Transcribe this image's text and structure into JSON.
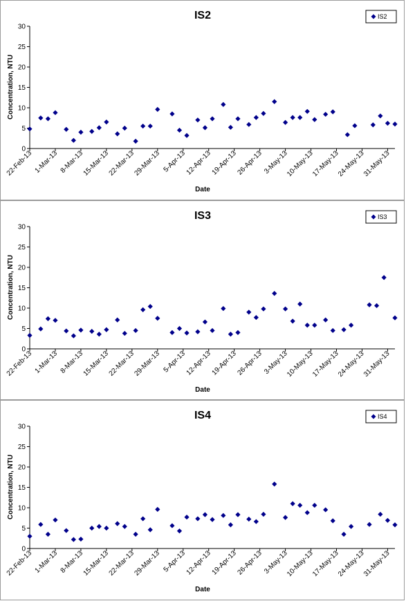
{
  "chart_data": [
    {
      "type": "scatter",
      "title": "IS2",
      "xlabel": "Date",
      "ylabel": "Concentration, NTU",
      "ylim": [
        0,
        30
      ],
      "yticks": [
        "0",
        "5",
        "10",
        "15",
        "20",
        "25",
        "30"
      ],
      "xticks": [
        "22-Feb-13",
        "1-Mar-13",
        "8-Mar-13",
        "15-Mar-13",
        "22-Mar-13",
        "29-Mar-13",
        "5-Apr-13",
        "12-Apr-13",
        "19-Apr-13",
        "26-Apr-13",
        "3-May-13",
        "10-May-13",
        "17-May-13",
        "24-May-13",
        "31-May-13"
      ],
      "xlim": [
        "2013-02-22",
        "2013-06-02"
      ],
      "legend": "top-right",
      "marker_color": "#00008b",
      "series": [
        {
          "name": "IS2",
          "points": [
            {
              "x": "2013-02-22",
              "y": 4.8
            },
            {
              "x": "2013-02-25",
              "y": 7.5
            },
            {
              "x": "2013-02-27",
              "y": 7.3
            },
            {
              "x": "2013-03-01",
              "y": 8.8
            },
            {
              "x": "2013-03-04",
              "y": 4.7
            },
            {
              "x": "2013-03-06",
              "y": 2.0
            },
            {
              "x": "2013-03-08",
              "y": 4.0
            },
            {
              "x": "2013-03-11",
              "y": 4.2
            },
            {
              "x": "2013-03-13",
              "y": 5.1
            },
            {
              "x": "2013-03-15",
              "y": 6.5
            },
            {
              "x": "2013-03-18",
              "y": 3.6
            },
            {
              "x": "2013-03-20",
              "y": 5.0
            },
            {
              "x": "2013-03-23",
              "y": 1.8
            },
            {
              "x": "2013-03-25",
              "y": 5.5
            },
            {
              "x": "2013-03-27",
              "y": 5.5
            },
            {
              "x": "2013-03-29",
              "y": 9.6
            },
            {
              "x": "2013-04-02",
              "y": 8.5
            },
            {
              "x": "2013-04-04",
              "y": 4.5
            },
            {
              "x": "2013-04-06",
              "y": 3.2
            },
            {
              "x": "2013-04-09",
              "y": 7.0
            },
            {
              "x": "2013-04-11",
              "y": 5.1
            },
            {
              "x": "2013-04-13",
              "y": 7.3
            },
            {
              "x": "2013-04-16",
              "y": 10.8
            },
            {
              "x": "2013-04-18",
              "y": 5.2
            },
            {
              "x": "2013-04-20",
              "y": 7.3
            },
            {
              "x": "2013-04-23",
              "y": 5.9
            },
            {
              "x": "2013-04-25",
              "y": 7.6
            },
            {
              "x": "2013-04-27",
              "y": 8.6
            },
            {
              "x": "2013-04-30",
              "y": 11.5
            },
            {
              "x": "2013-05-03",
              "y": 6.4
            },
            {
              "x": "2013-05-05",
              "y": 7.6
            },
            {
              "x": "2013-05-07",
              "y": 7.6
            },
            {
              "x": "2013-05-09",
              "y": 9.1
            },
            {
              "x": "2013-05-11",
              "y": 7.1
            },
            {
              "x": "2013-05-14",
              "y": 8.4
            },
            {
              "x": "2013-05-16",
              "y": 9.0
            },
            {
              "x": "2013-05-20",
              "y": 3.4
            },
            {
              "x": "2013-05-22",
              "y": 5.6
            },
            {
              "x": "2013-05-27",
              "y": 5.8
            },
            {
              "x": "2013-05-29",
              "y": 8.0
            },
            {
              "x": "2013-05-31",
              "y": 6.2
            },
            {
              "x": "2013-06-02",
              "y": 6.0
            }
          ]
        }
      ]
    },
    {
      "type": "scatter",
      "title": "IS3",
      "xlabel": "Date",
      "ylabel": "Concentration, NTU",
      "ylim": [
        0,
        30
      ],
      "yticks": [
        "0",
        "5",
        "10",
        "15",
        "20",
        "25",
        "30"
      ],
      "xticks": [
        "22-Feb-13",
        "1-Mar-13",
        "8-Mar-13",
        "15-Mar-13",
        "22-Mar-13",
        "29-Mar-13",
        "5-Apr-13",
        "12-Apr-13",
        "19-Apr-13",
        "26-Apr-13",
        "3-May-13",
        "10-May-13",
        "17-May-13",
        "24-May-13",
        "31-May-13"
      ],
      "xlim": [
        "2013-02-22",
        "2013-06-02"
      ],
      "legend": "top-right",
      "marker_color": "#00008b",
      "series": [
        {
          "name": "IS3",
          "points": [
            {
              "x": "2013-02-22",
              "y": 3.3
            },
            {
              "x": "2013-02-25",
              "y": 4.9
            },
            {
              "x": "2013-02-27",
              "y": 7.4
            },
            {
              "x": "2013-03-01",
              "y": 7.0
            },
            {
              "x": "2013-03-04",
              "y": 4.4
            },
            {
              "x": "2013-03-06",
              "y": 3.2
            },
            {
              "x": "2013-03-08",
              "y": 4.6
            },
            {
              "x": "2013-03-11",
              "y": 4.3
            },
            {
              "x": "2013-03-13",
              "y": 3.6
            },
            {
              "x": "2013-03-15",
              "y": 4.7
            },
            {
              "x": "2013-03-18",
              "y": 7.1
            },
            {
              "x": "2013-03-20",
              "y": 3.8
            },
            {
              "x": "2013-03-23",
              "y": 4.5
            },
            {
              "x": "2013-03-25",
              "y": 9.6
            },
            {
              "x": "2013-03-27",
              "y": 10.4
            },
            {
              "x": "2013-03-29",
              "y": 7.5
            },
            {
              "x": "2013-04-02",
              "y": 4.0
            },
            {
              "x": "2013-04-04",
              "y": 5.0
            },
            {
              "x": "2013-04-06",
              "y": 3.9
            },
            {
              "x": "2013-04-09",
              "y": 4.2
            },
            {
              "x": "2013-04-11",
              "y": 6.6
            },
            {
              "x": "2013-04-13",
              "y": 4.5
            },
            {
              "x": "2013-04-16",
              "y": 9.9
            },
            {
              "x": "2013-04-18",
              "y": 3.6
            },
            {
              "x": "2013-04-20",
              "y": 4.0
            },
            {
              "x": "2013-04-23",
              "y": 9.0
            },
            {
              "x": "2013-04-25",
              "y": 7.7
            },
            {
              "x": "2013-04-27",
              "y": 9.8
            },
            {
              "x": "2013-04-30",
              "y": 13.6
            },
            {
              "x": "2013-05-03",
              "y": 9.8
            },
            {
              "x": "2013-05-05",
              "y": 6.8
            },
            {
              "x": "2013-05-07",
              "y": 11.0
            },
            {
              "x": "2013-05-09",
              "y": 5.8
            },
            {
              "x": "2013-05-11",
              "y": 5.8
            },
            {
              "x": "2013-05-14",
              "y": 7.1
            },
            {
              "x": "2013-05-16",
              "y": 4.5
            },
            {
              "x": "2013-05-19",
              "y": 4.7
            },
            {
              "x": "2013-05-21",
              "y": 5.8
            },
            {
              "x": "2013-05-26",
              "y": 10.8
            },
            {
              "x": "2013-05-28",
              "y": 10.6
            },
            {
              "x": "2013-05-30",
              "y": 17.5
            },
            {
              "x": "2013-06-02",
              "y": 7.6
            }
          ]
        }
      ]
    },
    {
      "type": "scatter",
      "title": "IS4",
      "xlabel": "Date",
      "ylabel": "Concentration, NTU",
      "ylim": [
        0,
        30
      ],
      "yticks": [
        "0",
        "5",
        "10",
        "15",
        "20",
        "25",
        "30"
      ],
      "xticks": [
        "22-Feb-13",
        "1-Mar-13",
        "8-Mar-13",
        "15-Mar-13",
        "22-Mar-13",
        "29-Mar-13",
        "5-Apr-13",
        "12-Apr-13",
        "19-Apr-13",
        "26-Apr-13",
        "3-May-13",
        "10-May-13",
        "17-May-13",
        "24-May-13",
        "31-May-13"
      ],
      "xlim": [
        "2013-02-22",
        "2013-06-02"
      ],
      "legend": "top-right",
      "marker_color": "#00008b",
      "series": [
        {
          "name": "IS4",
          "points": [
            {
              "x": "2013-02-22",
              "y": 3.0
            },
            {
              "x": "2013-02-25",
              "y": 5.9
            },
            {
              "x": "2013-02-27",
              "y": 3.5
            },
            {
              "x": "2013-03-01",
              "y": 7.0
            },
            {
              "x": "2013-03-04",
              "y": 4.4
            },
            {
              "x": "2013-03-06",
              "y": 2.2
            },
            {
              "x": "2013-03-08",
              "y": 2.3
            },
            {
              "x": "2013-03-11",
              "y": 5.0
            },
            {
              "x": "2013-03-13",
              "y": 5.4
            },
            {
              "x": "2013-03-15",
              "y": 5.0
            },
            {
              "x": "2013-03-18",
              "y": 6.1
            },
            {
              "x": "2013-03-20",
              "y": 5.4
            },
            {
              "x": "2013-03-23",
              "y": 3.5
            },
            {
              "x": "2013-03-25",
              "y": 7.3
            },
            {
              "x": "2013-03-27",
              "y": 4.6
            },
            {
              "x": "2013-03-29",
              "y": 9.6
            },
            {
              "x": "2013-04-02",
              "y": 5.6
            },
            {
              "x": "2013-04-04",
              "y": 4.3
            },
            {
              "x": "2013-04-06",
              "y": 7.7
            },
            {
              "x": "2013-04-09",
              "y": 7.3
            },
            {
              "x": "2013-04-11",
              "y": 8.3
            },
            {
              "x": "2013-04-13",
              "y": 7.1
            },
            {
              "x": "2013-04-16",
              "y": 8.1
            },
            {
              "x": "2013-04-18",
              "y": 5.8
            },
            {
              "x": "2013-04-20",
              "y": 8.3
            },
            {
              "x": "2013-04-23",
              "y": 7.2
            },
            {
              "x": "2013-04-25",
              "y": 6.6
            },
            {
              "x": "2013-04-27",
              "y": 8.4
            },
            {
              "x": "2013-04-30",
              "y": 15.8
            },
            {
              "x": "2013-05-03",
              "y": 7.6
            },
            {
              "x": "2013-05-05",
              "y": 11.0
            },
            {
              "x": "2013-05-07",
              "y": 10.6
            },
            {
              "x": "2013-05-09",
              "y": 8.8
            },
            {
              "x": "2013-05-11",
              "y": 10.6
            },
            {
              "x": "2013-05-14",
              "y": 9.5
            },
            {
              "x": "2013-05-16",
              "y": 6.8
            },
            {
              "x": "2013-05-19",
              "y": 3.5
            },
            {
              "x": "2013-05-21",
              "y": 5.4
            },
            {
              "x": "2013-05-26",
              "y": 5.9
            },
            {
              "x": "2013-05-29",
              "y": 8.4
            },
            {
              "x": "2013-05-31",
              "y": 6.9
            },
            {
              "x": "2013-06-02",
              "y": 5.8
            }
          ]
        }
      ]
    }
  ]
}
